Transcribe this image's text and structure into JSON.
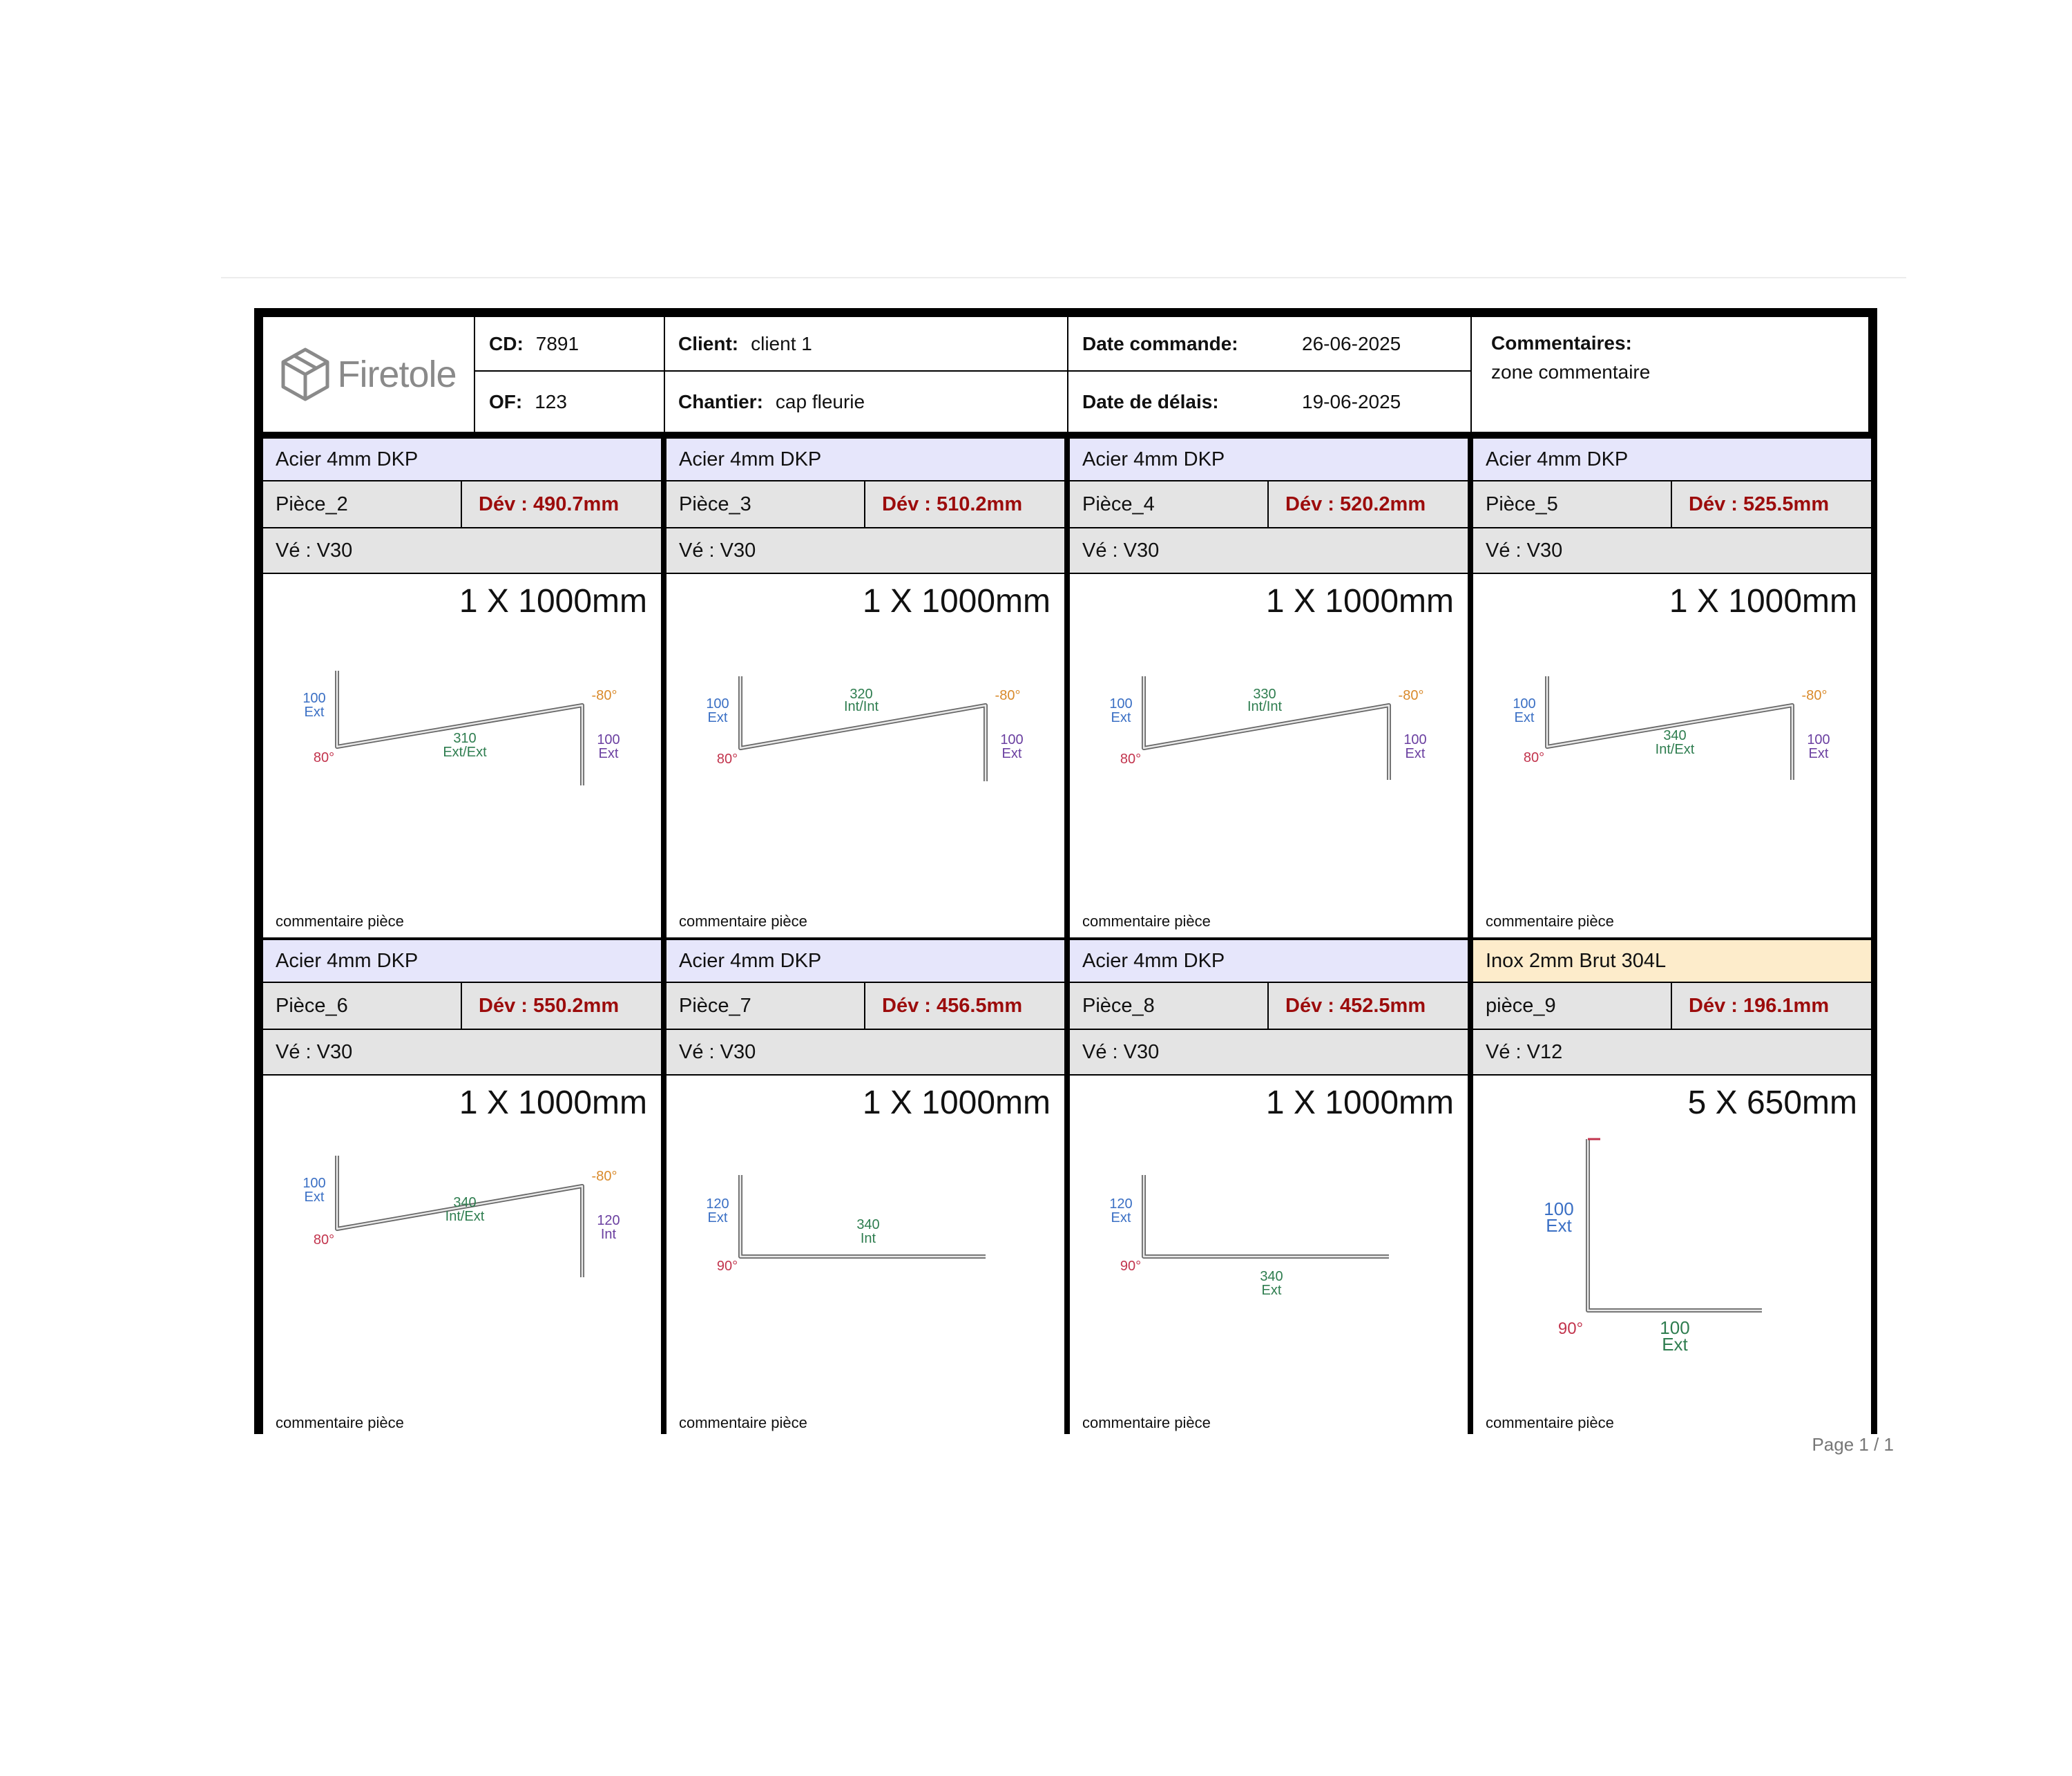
{
  "header": {
    "logo_text": "Firetole",
    "cd_label": "CD:",
    "cd_value": "7891",
    "of_label": "OF:",
    "of_value": "123",
    "client_label": "Client:",
    "client_value": "client 1",
    "chantier_label": "Chantier:",
    "chantier_value": "cap fleurie",
    "date_commande_label": "Date commande:",
    "date_commande_value": "26-06-2025",
    "date_delais_label": "Date de délais:",
    "date_delais_value": "19-06-2025",
    "commentaires_label": "Commentaires:",
    "commentaires_value": "zone commentaire"
  },
  "pieces": [
    {
      "material": "Acier  4mm  DKP",
      "name": "Pièce_2",
      "dev": "Dév : 490.7mm",
      "ve": "Vé : V30",
      "qty": "1 X 1000mm",
      "comment": "commentaire pièce",
      "labels": {
        "left_len": "100",
        "left_type": "Ext",
        "mid_len": "310",
        "mid_type": "Ext/Ext",
        "right_len": "100",
        "right_type": "Ext",
        "angle1": "80°",
        "angle2": "-80°"
      }
    },
    {
      "material": "Acier  4mm  DKP",
      "name": "Pièce_3",
      "dev": "Dév : 510.2mm",
      "ve": "Vé : V30",
      "qty": "1 X 1000mm",
      "comment": "commentaire pièce",
      "labels": {
        "left_len": "100",
        "left_type": "Ext",
        "mid_len": "320",
        "mid_type": "Int/Int",
        "right_len": "100",
        "right_type": "Ext",
        "angle1": "80°",
        "angle2": "-80°"
      }
    },
    {
      "material": "Acier  4mm  DKP",
      "name": "Pièce_4",
      "dev": "Dév : 520.2mm",
      "ve": "Vé : V30",
      "qty": "1 X 1000mm",
      "comment": "commentaire pièce",
      "labels": {
        "left_len": "100",
        "left_type": "Ext",
        "mid_len": "330",
        "mid_type": "Int/Int",
        "right_len": "100",
        "right_type": "Ext",
        "angle1": "80°",
        "angle2": "-80°"
      }
    },
    {
      "material": "Acier  4mm  DKP",
      "name": "Pièce_5",
      "dev": "Dév : 525.5mm",
      "ve": "Vé : V30",
      "qty": "1 X 1000mm",
      "comment": "commentaire pièce",
      "labels": {
        "left_len": "100",
        "left_type": "Ext",
        "mid_len": "340",
        "mid_type": "Int/Ext",
        "right_len": "100",
        "right_type": "Ext",
        "angle1": "80°",
        "angle2": "-80°"
      }
    },
    {
      "material": "Acier  4mm  DKP",
      "name": "Pièce_6",
      "dev": "Dév : 550.2mm",
      "ve": "Vé : V30",
      "qty": "1 X 1000mm",
      "comment": "commentaire pièce",
      "labels": {
        "left_len": "100",
        "left_type": "Ext",
        "mid_len": "340",
        "mid_type": "Int/Ext",
        "right_len": "120",
        "right_type": "Int",
        "angle1": "80°",
        "angle2": "-80°"
      }
    },
    {
      "material": "Acier  4mm  DKP",
      "name": "Pièce_7",
      "dev": "Dév : 456.5mm",
      "ve": "Vé : V30",
      "qty": "1 X 1000mm",
      "comment": "commentaire pièce",
      "labels": {
        "left_len": "120",
        "left_type": "Ext",
        "mid_len": "340",
        "mid_type": "Int",
        "angle1": "90°"
      }
    },
    {
      "material": "Acier  4mm  DKP",
      "name": "Pièce_8",
      "dev": "Dév : 452.5mm",
      "ve": "Vé : V30",
      "qty": "1 X 1000mm",
      "comment": "commentaire pièce",
      "labels": {
        "left_len": "120",
        "left_type": "Ext",
        "mid_len": "340",
        "mid_type": "Ext",
        "angle1": "90°"
      }
    },
    {
      "material": "Inox  2mm  Brut 304L",
      "name": "pièce_9",
      "dev": "Dév : 196.1mm",
      "ve": "Vé : V12",
      "qty": "5 X 650mm",
      "comment": "commentaire pièce",
      "labels": {
        "left_len": "100",
        "left_type": "Ext",
        "mid_len": "100",
        "mid_type": "Ext",
        "angle1": "90°"
      }
    }
  ],
  "colors": {
    "length_label": "#3a6fc4",
    "middle_label": "#2e7d4f",
    "right_label": "#6a3fa0",
    "angle_label": "#c2344d",
    "neg_angle_label": "#d98a2b",
    "dev_text": "#9c0c0c",
    "material_bg": "#e6e6fb",
    "inox_bg": "#fdeccb"
  },
  "footer": {
    "page": "Page 1 / 1"
  }
}
